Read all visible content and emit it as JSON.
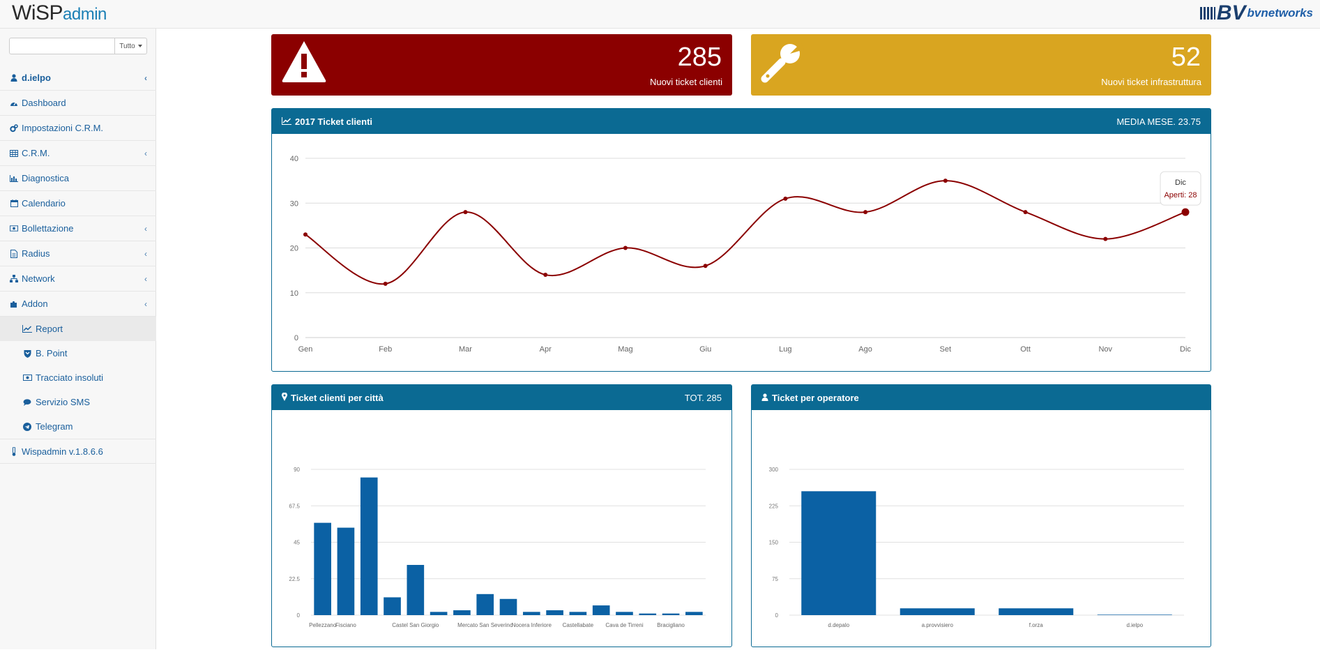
{
  "brand": {
    "logo_wsp": "WiSP",
    "logo_admin": "admin",
    "partner_mark": "BV",
    "partner": "bvnetworks"
  },
  "search": {
    "value": "",
    "placeholder": "",
    "select_value": "Tutto"
  },
  "sidebar": {
    "user": "d.ielpo",
    "items": [
      {
        "label": "Dashboard",
        "icon": "dashboard-icon"
      },
      {
        "label": "Impostazioni C.R.M.",
        "icon": "cogs-icon"
      },
      {
        "label": "C.R.M.",
        "icon": "table-icon"
      },
      {
        "label": "Diagnostica",
        "icon": "bar-chart-icon"
      },
      {
        "label": "Calendario",
        "icon": "calendar-icon"
      },
      {
        "label": "Bollettazione",
        "icon": "money-icon"
      },
      {
        "label": "Radius",
        "icon": "document-icon"
      },
      {
        "label": "Network",
        "icon": "sitemap-icon"
      },
      {
        "label": "Addon",
        "icon": "puzzle-icon"
      }
    ],
    "addon_items": [
      {
        "label": "Report",
        "icon": "line-chart-icon",
        "active": true
      },
      {
        "label": "B. Point",
        "icon": "shield-icon"
      },
      {
        "label": "Tracciato insoluti",
        "icon": "money-icon"
      },
      {
        "label": "Servizio SMS",
        "icon": "comment-icon"
      },
      {
        "label": "Telegram",
        "icon": "telegram-icon"
      }
    ],
    "version": "Wispadmin v.1.8.6.6"
  },
  "stats": {
    "clienti": {
      "value": "285",
      "label": "Nuovi ticket clienti",
      "color": "#8b0000",
      "icon": "warning-icon"
    },
    "infrastruttura": {
      "value": "52",
      "label": "Nuovi ticket infrastruttura",
      "color": "#d9a520",
      "icon": "wrench-icon"
    }
  },
  "panels": {
    "line": {
      "title": "2017 Ticket clienti",
      "right": "MEDIA MESE. 23.75"
    },
    "city": {
      "title": "Ticket clienti per città",
      "right": "TOT. 285"
    },
    "oper": {
      "title": "Ticket per operatore",
      "right": ""
    }
  },
  "chart_data": [
    {
      "type": "line",
      "categories": [
        "Gen",
        "Feb",
        "Mar",
        "Apr",
        "Mag",
        "Giu",
        "Lug",
        "Ago",
        "Set",
        "Ott",
        "Nov",
        "Dic"
      ],
      "values": [
        23,
        12,
        28,
        14,
        20,
        16,
        31,
        28,
        35,
        28,
        22,
        28
      ],
      "ylim": [
        0,
        40
      ],
      "yticks": [
        0,
        10,
        20,
        30,
        40
      ],
      "line_color": "#8b0000",
      "grid": true,
      "tooltip": {
        "category": "Dic",
        "series": "Aperti",
        "value": "28"
      }
    },
    {
      "type": "bar",
      "categories": [
        "Pellezzano",
        "Fisciano",
        "",
        "",
        "Castel San Giorgio",
        "",
        "",
        "Mercato San Severino",
        "",
        "Nocera Inferiore",
        "",
        "Castellabate",
        "",
        "Cava de Tirreni",
        "",
        "Bracigliano",
        ""
      ],
      "values": [
        57,
        54,
        85,
        11,
        31,
        2,
        3,
        13,
        10,
        2,
        3,
        2,
        6,
        2,
        1,
        1,
        2
      ],
      "ylim": [
        0,
        90
      ],
      "yticks": [
        "0",
        "22.5",
        "45",
        "67.5",
        "90"
      ],
      "bar_color": "#0b61a4",
      "grid": true
    },
    {
      "type": "bar",
      "categories": [
        "d.depalo",
        "a.provvisiero",
        "f.orza",
        "d.ielpo"
      ],
      "values": [
        255,
        14,
        14,
        1
      ],
      "ylim": [
        0,
        300
      ],
      "yticks": [
        "0",
        "75",
        "150",
        "225",
        "300"
      ],
      "bar_color": "#0b61a4",
      "grid": true
    }
  ]
}
